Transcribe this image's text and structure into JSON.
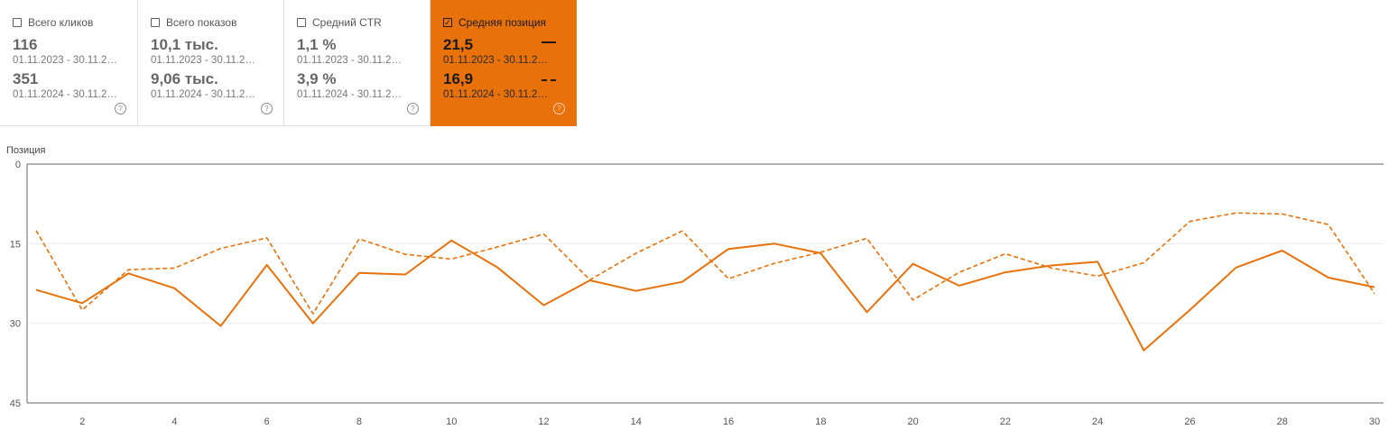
{
  "cards": [
    {
      "label": "Всего кликов",
      "checked": false,
      "value1": "116",
      "date1": "01.11.2023 - 30.11.2…",
      "value2": "351",
      "date2": "01.11.2024 - 30.11.2…"
    },
    {
      "label": "Всего показов",
      "checked": false,
      "value1": "10,1 тыс.",
      "date1": "01.11.2023 - 30.11.2…",
      "value2": "9,06 тыс.",
      "date2": "01.11.2024 - 30.11.2…"
    },
    {
      "label": "Средний CTR",
      "checked": false,
      "value1": "1,1 %",
      "date1": "01.11.2023 - 30.11.2…",
      "value2": "3,9 %",
      "date2": "01.11.2024 - 30.11.2…"
    },
    {
      "label": "Средняя позиция",
      "checked": true,
      "value1": "21,5",
      "date1": "01.11.2023 - 30.11.2…",
      "value2": "16,9",
      "date2": "01.11.2024 - 30.11.2…"
    }
  ],
  "help_glyph": "?",
  "checkmark_glyph": "✓",
  "accent_color": "#e8710a",
  "chart_data": {
    "type": "line",
    "ylabel": "Позиция",
    "y_inverted": true,
    "ylim": [
      0,
      45
    ],
    "yticks": [
      0,
      15,
      30,
      45
    ],
    "xlim": [
      1,
      30
    ],
    "xticks": [
      2,
      4,
      6,
      8,
      10,
      12,
      14,
      16,
      18,
      20,
      22,
      24,
      26,
      28,
      30
    ],
    "grid": true,
    "series": [
      {
        "style": "solid",
        "x": [
          1,
          2,
          3,
          4,
          5,
          6,
          7,
          8,
          9,
          10,
          11,
          12,
          13,
          14,
          15,
          16,
          17,
          18,
          19,
          20,
          21,
          22,
          23,
          24,
          25,
          26,
          27,
          28,
          29,
          30
        ],
        "values": [
          23.7,
          26.2,
          20.6,
          23.4,
          30.5,
          19.0,
          30.0,
          20.5,
          20.8,
          14.4,
          19.5,
          26.6,
          21.9,
          23.9,
          22.2,
          16.0,
          15.0,
          16.8,
          27.9,
          18.8,
          22.9,
          20.4,
          19.1,
          18.4,
          35.1,
          27.5,
          19.5,
          16.3,
          21.4,
          23.2
        ]
      },
      {
        "style": "dashed",
        "x": [
          1,
          2,
          3,
          4,
          5,
          6,
          7,
          8,
          9,
          10,
          11,
          12,
          13,
          14,
          15,
          16,
          17,
          18,
          19,
          20,
          21,
          22,
          23,
          24,
          25,
          26,
          27,
          28,
          29,
          30
        ],
        "values": [
          12.5,
          27.5,
          19.9,
          19.6,
          15.9,
          13.9,
          28.2,
          14.1,
          17.0,
          17.9,
          15.6,
          13.2,
          21.8,
          16.8,
          12.6,
          21.6,
          18.7,
          16.6,
          14.0,
          25.6,
          20.4,
          16.9,
          19.6,
          21.1,
          18.6,
          10.8,
          9.2,
          9.4,
          11.4,
          24.4
        ]
      }
    ]
  }
}
